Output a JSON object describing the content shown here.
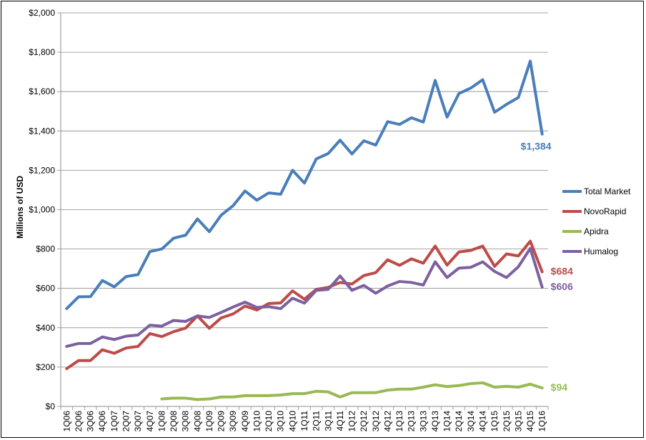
{
  "chart_data": {
    "type": "line",
    "title": "",
    "xlabel": "",
    "ylabel": "Millions of USD",
    "ylim": [
      0,
      2000
    ],
    "ytick_values": [
      0,
      200,
      400,
      600,
      800,
      1000,
      1200,
      1400,
      1600,
      1800,
      2000
    ],
    "ytick_labels": [
      "$0",
      "$200",
      "$400",
      "$600",
      "$800",
      "$1,000",
      "$1,200",
      "$1,400",
      "$1,600",
      "$1,800",
      "$2,000"
    ],
    "grid": "horizontal",
    "legend_position": "right",
    "categories": [
      "1Q06",
      "2Q06",
      "3Q06",
      "4Q06",
      "1Q07",
      "2Q07",
      "3Q07",
      "4Q07",
      "1Q08",
      "2Q08",
      "3Q08",
      "4Q08",
      "1Q09",
      "2Q09",
      "3Q09",
      "4Q09",
      "1Q10",
      "2Q10",
      "3Q10",
      "4Q10",
      "1Q11",
      "2Q11",
      "3Q11",
      "4Q11",
      "1Q12",
      "2Q12",
      "3Q12",
      "4Q12",
      "1Q13",
      "2Q13",
      "3Q13",
      "4Q13",
      "1Q14",
      "2Q14",
      "3Q14",
      "4Q14",
      "1Q15",
      "2Q15",
      "3Q15",
      "4Q15",
      "1Q16"
    ],
    "series": [
      {
        "name": "Total Market",
        "color": "#4a7ebb",
        "end_label": "$1,384",
        "values": [
          497,
          557,
          558,
          640,
          608,
          660,
          670,
          787,
          800,
          855,
          870,
          953,
          888,
          972,
          1020,
          1095,
          1048,
          1085,
          1078,
          1200,
          1135,
          1258,
          1285,
          1353,
          1283,
          1350,
          1328,
          1447,
          1433,
          1467,
          1445,
          1657,
          1470,
          1590,
          1618,
          1660,
          1495,
          1535,
          1570,
          1755,
          1384
        ]
      },
      {
        "name": "NovoRapid",
        "color": "#be4b48",
        "end_label": "$684",
        "values": [
          192,
          233,
          233,
          288,
          270,
          297,
          305,
          370,
          355,
          380,
          398,
          460,
          397,
          450,
          470,
          510,
          490,
          523,
          526,
          587,
          545,
          595,
          605,
          630,
          622,
          665,
          680,
          745,
          717,
          750,
          728,
          815,
          718,
          785,
          793,
          815,
          712,
          775,
          765,
          840,
          684
        ]
      },
      {
        "name": "Apidra",
        "color": "#98b954",
        "end_label": "$94",
        "values": [
          null,
          null,
          null,
          null,
          null,
          null,
          null,
          null,
          38,
          42,
          42,
          35,
          38,
          48,
          48,
          55,
          55,
          55,
          58,
          65,
          65,
          77,
          74,
          48,
          70,
          70,
          70,
          83,
          88,
          88,
          98,
          110,
          101,
          106,
          116,
          120,
          98,
          102,
          98,
          113,
          94
        ]
      },
      {
        "name": "Humalog",
        "color": "#7d60a0",
        "end_label": "$606",
        "values": [
          305,
          320,
          320,
          353,
          340,
          357,
          363,
          413,
          408,
          437,
          432,
          460,
          452,
          478,
          505,
          530,
          503,
          507,
          497,
          550,
          525,
          590,
          595,
          663,
          590,
          615,
          575,
          612,
          635,
          630,
          617,
          735,
          655,
          703,
          707,
          735,
          686,
          655,
          710,
          803,
          606
        ]
      }
    ]
  }
}
